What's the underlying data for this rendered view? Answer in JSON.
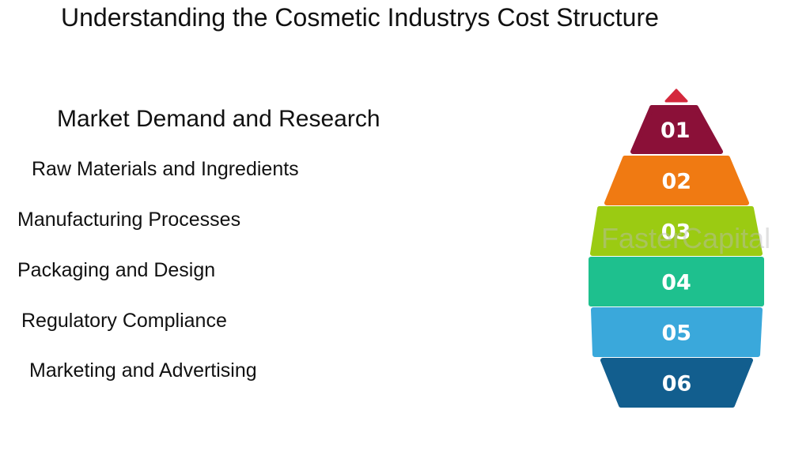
{
  "title": "Understanding the Cosmetic Industrys Cost Structure",
  "items": [
    {
      "label": "Market Demand and Research"
    },
    {
      "label": "Raw Materials and Ingredients"
    },
    {
      "label": "Manufacturing Processes"
    },
    {
      "label": "Packaging and Design"
    },
    {
      "label": "Regulatory Compliance"
    },
    {
      "label": "Marketing and Advertising"
    }
  ],
  "layers": [
    {
      "number": "01",
      "color": "#8B1038"
    },
    {
      "number": "02",
      "color": "#F07A12"
    },
    {
      "number": "03",
      "color": "#9BCB12"
    },
    {
      "number": "04",
      "color": "#1EC08E"
    },
    {
      "number": "05",
      "color": "#3AA8DB"
    },
    {
      "number": "06",
      "color": "#125E8E"
    }
  ],
  "tip_color": "#D4283C",
  "watermark": "FasterCapital"
}
